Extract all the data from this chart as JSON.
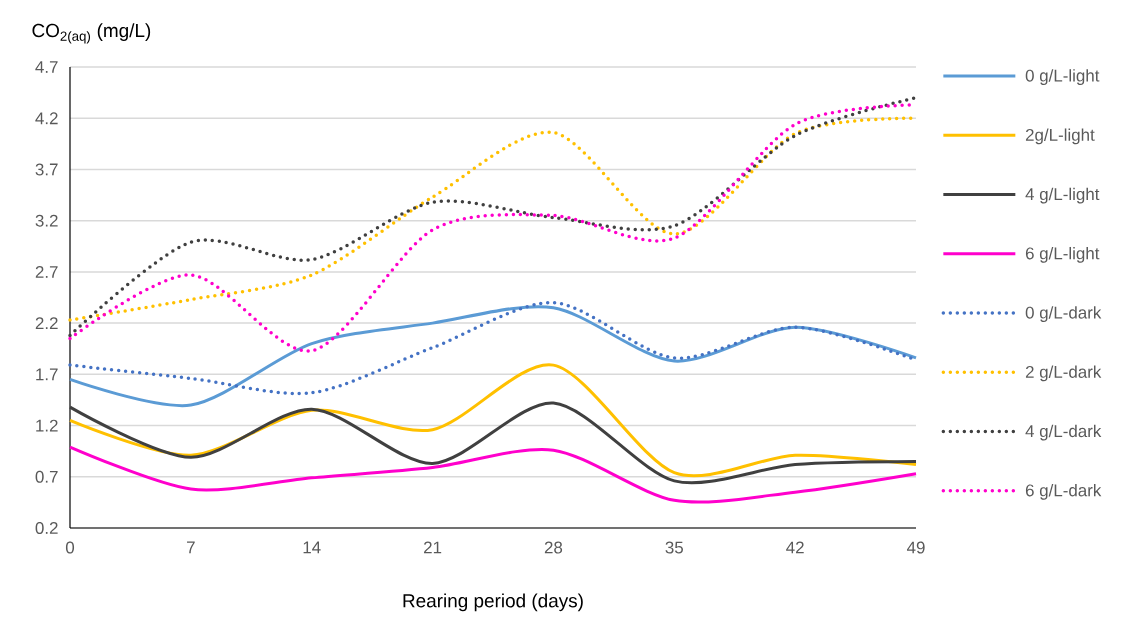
{
  "chart_data": {
    "type": "line",
    "ylabel": "CO$_{2(aq)}$ (mg/L)",
    "xlabel": "Rearing period (days)",
    "x": [
      0,
      7,
      14,
      21,
      28,
      35,
      42,
      49
    ],
    "xlim": [
      0,
      49
    ],
    "xticks": [
      0,
      7,
      14,
      21,
      28,
      35,
      42,
      49
    ],
    "ylim": [
      0.2,
      4.7
    ],
    "yticks": [
      0.2,
      0.7,
      1.2,
      1.7,
      2.2,
      2.7,
      3.2,
      3.7,
      4.2,
      4.7
    ],
    "grid": "y",
    "legend": "right",
    "series": [
      {
        "name": "0 g/L-light",
        "color": "#5b9bd5",
        "line_style": "solid",
        "values": [
          1.65,
          1.4,
          2.0,
          2.2,
          2.35,
          1.83,
          2.16,
          1.86
        ]
      },
      {
        "name": "2g/L-light",
        "color": "#ffc000",
        "line_style": "solid",
        "values": [
          1.25,
          0.91,
          1.35,
          1.16,
          1.79,
          0.74,
          0.91,
          0.82
        ]
      },
      {
        "name": "4 g/L-light",
        "color": "#404040",
        "line_style": "solid",
        "values": [
          1.38,
          0.89,
          1.36,
          0.83,
          1.42,
          0.66,
          0.82,
          0.85
        ]
      },
      {
        "name": "6 g/L-light",
        "color": "#ff00cc",
        "line_style": "solid",
        "values": [
          0.99,
          0.58,
          0.69,
          0.79,
          0.96,
          0.47,
          0.55,
          0.73
        ]
      },
      {
        "name": "0 g/L-dark",
        "color": "#4472c4",
        "line_style": "dotted",
        "values": [
          1.79,
          1.66,
          1.52,
          1.96,
          2.4,
          1.86,
          2.16,
          1.84
        ]
      },
      {
        "name": "2 g/L-dark",
        "color": "#ffc000",
        "line_style": "dotted",
        "values": [
          2.23,
          2.43,
          2.67,
          3.43,
          4.06,
          3.07,
          4.05,
          4.2
        ]
      },
      {
        "name": "4 g/L-dark",
        "color": "#404040",
        "line_style": "dotted",
        "values": [
          2.08,
          2.99,
          2.82,
          3.38,
          3.23,
          3.15,
          4.03,
          4.4
        ]
      },
      {
        "name": "6 g/L-dark",
        "color": "#ff00cc",
        "line_style": "dotted",
        "values": [
          2.05,
          2.67,
          1.93,
          3.11,
          3.25,
          3.03,
          4.14,
          4.33
        ]
      }
    ]
  }
}
